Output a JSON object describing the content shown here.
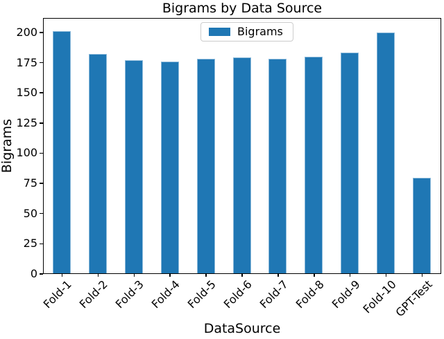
{
  "chart_data": {
    "type": "bar",
    "title": "Bigrams by Data Source",
    "xlabel": "DataSource",
    "ylabel": "Bigrams",
    "legend": {
      "entries": [
        "Bigrams"
      ],
      "position": "upper center"
    },
    "categories": [
      "Fold-1",
      "Fold-2",
      "Fold-3",
      "Fold-4",
      "Fold-5",
      "Fold-6",
      "Fold-7",
      "Fold-8",
      "Fold-9",
      "Fold-10",
      "GPT-Test"
    ],
    "values": [
      202,
      183,
      178,
      177,
      179,
      180,
      179,
      181,
      184,
      201,
      80
    ],
    "yticks": [
      0,
      25,
      50,
      75,
      100,
      125,
      150,
      175,
      200
    ],
    "ylim": [
      0,
      212
    ],
    "xtick_rotation": 45,
    "grid": false,
    "bar_color": "#1f77b4",
    "bar_edge_color": "#8bb9da",
    "spine_color": "#000000",
    "background_color": "#ffffff"
  }
}
